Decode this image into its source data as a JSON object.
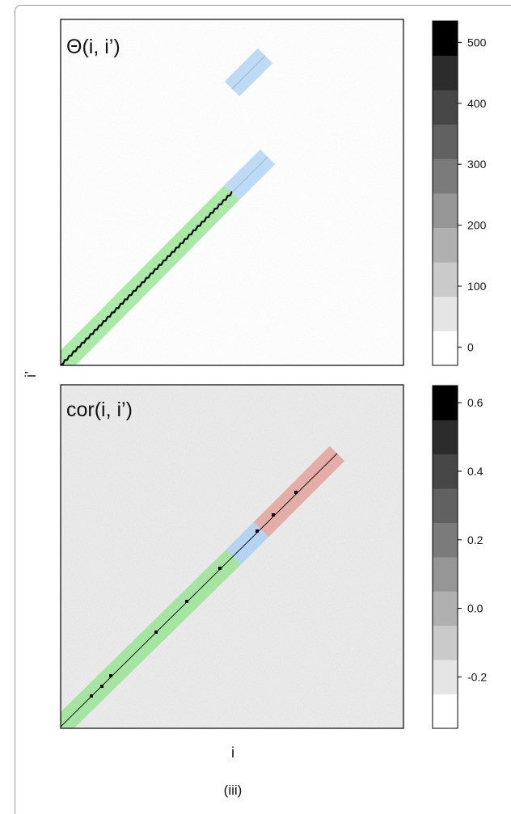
{
  "figure_label": "(iii)",
  "x_axis_label": "i",
  "y_axis_label": "i’",
  "colors": {
    "green_band": "#8fe38a",
    "blue_band": "#a9cff4",
    "red_band": "#e39a93",
    "heat_light": "#d6d6d6",
    "heat_bg": "#cdcdcd"
  },
  "chart_data": [
    {
      "type": "heatmap",
      "title": "Θ(i, i’)",
      "xlabel": "",
      "ylabel": "i’",
      "colorbar": {
        "ticks": [
          "500",
          "400",
          "300",
          "200",
          "100",
          "0"
        ],
        "tick_values": [
          500,
          400,
          300,
          200,
          100,
          0
        ],
        "range": [
          -30,
          535
        ],
        "levels": 10
      },
      "highlight_bands": [
        {
          "color": "green",
          "from": 0.0,
          "to": 0.5
        },
        {
          "color": "blue",
          "from": 0.5,
          "to": 0.575
        },
        {
          "color": "blue",
          "from": 0.48,
          "to": 0.575,
          "offset": 0.3
        }
      ],
      "diagonal": "dark line along green segment"
    },
    {
      "type": "heatmap",
      "title": "cor(i, i’)",
      "xlabel": "i",
      "ylabel": "",
      "colorbar": {
        "ticks": [
          "0.6",
          "0.4",
          "0.2",
          "0.0",
          "-0.2"
        ],
        "tick_values": [
          0.6,
          0.4,
          0.2,
          0.0,
          -0.2
        ],
        "range": [
          -0.35,
          0.65
        ],
        "levels": 10
      },
      "highlight_bands": [
        {
          "color": "green",
          "from": 0.0,
          "to": 0.5
        },
        {
          "color": "blue",
          "from": 0.5,
          "to": 0.6
        },
        {
          "color": "red",
          "from": 0.6,
          "to": 0.8
        }
      ],
      "diagonal": "thin dark line with dots"
    }
  ]
}
